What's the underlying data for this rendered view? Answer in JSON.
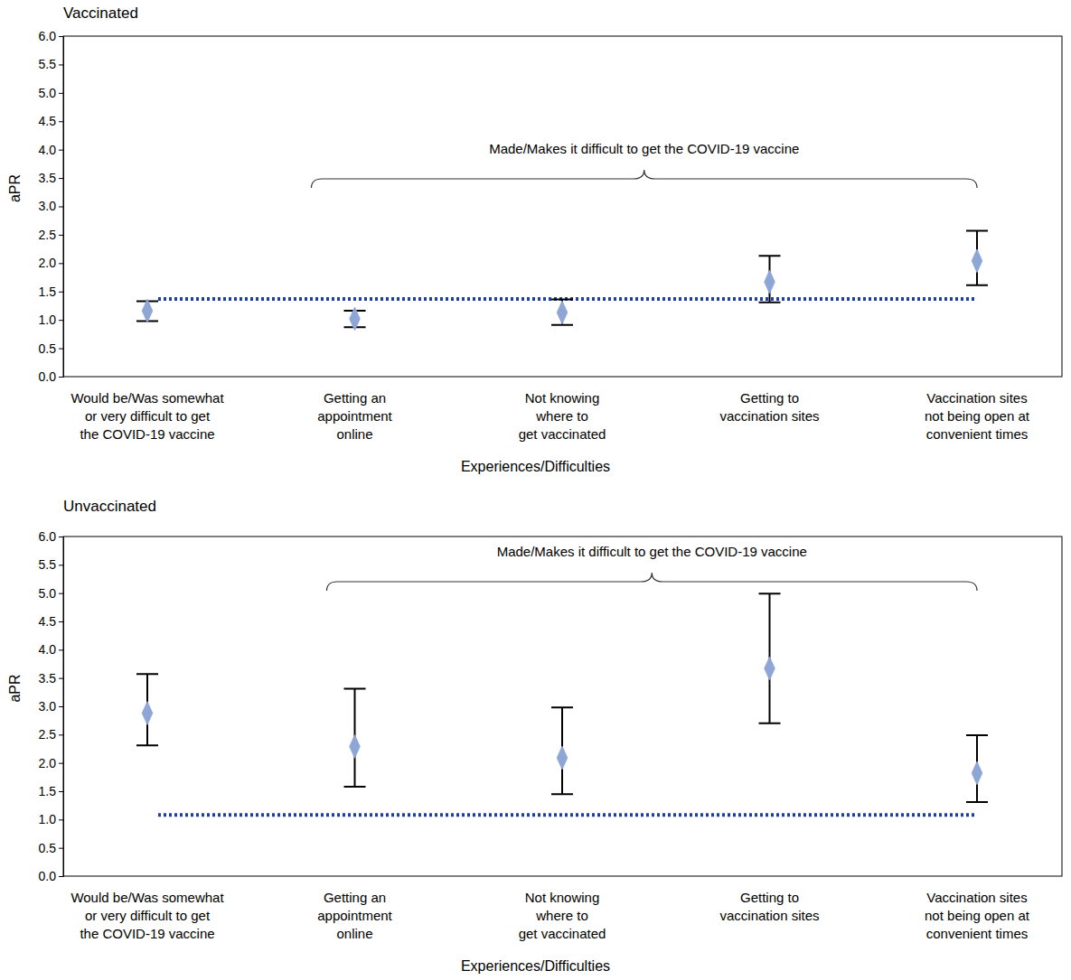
{
  "chart_data": [
    {
      "type": "scatter",
      "title": "Vaccinated",
      "xlabel": "Experiences/Difficulties",
      "ylabel": "aPR",
      "annotation": "Made/Makes it difficult to get the COVID-19 vaccine",
      "categories": [
        "Would be/Was somewhat\nor very difficult to get\nthe COVID-19 vaccine",
        "Getting an\nappointment\nonline",
        "Not knowing\nwhere to\nget vaccinated",
        "Getting to\nvaccination sites",
        "Vaccination sites\nnot being open at\nconvenient times"
      ],
      "series": [
        {
          "name": "Vaccinated",
          "color": "#8ea6d6",
          "marker": "diamond",
          "values": [
            1.16,
            1.02,
            1.13,
            1.67,
            2.04
          ],
          "lower": [
            0.98,
            0.87,
            0.91,
            1.31,
            1.61
          ],
          "upper": [
            1.33,
            1.16,
            1.36,
            2.13,
            2.57
          ]
        }
      ],
      "reference_line": 1.37,
      "ylim": [
        0,
        6
      ],
      "yticks": [
        {
          "value": 0,
          "label": "0.0"
        },
        {
          "value": 0.5,
          "label": "0.5"
        },
        {
          "value": 1,
          "label": "1.0"
        },
        {
          "value": 1.5,
          "label": "1.5"
        },
        {
          "value": 2,
          "label": "2.0"
        },
        {
          "value": 2.5,
          "label": "2.5"
        },
        {
          "value": 3,
          "label": "3.0"
        },
        {
          "value": 3.5,
          "label": "3.5"
        },
        {
          "value": 4,
          "label": "4.0"
        },
        {
          "value": 4.5,
          "label": "4.5"
        },
        {
          "value": 5,
          "label": "5.0"
        },
        {
          "value": 5.5,
          "label": "5.5"
        },
        {
          "value": 6,
          "label": "6.0"
        }
      ],
      "grid": false
    },
    {
      "type": "scatter",
      "title": "Unvaccinated",
      "xlabel": "Experiences/Difficulties",
      "ylabel": "aPR",
      "annotation": "Made/Makes it difficult to get the COVID-19 vaccine",
      "categories": [
        "Would be/Was somewhat\nor very difficult to get\nthe COVID-19 vaccine",
        "Getting an\nappointment\nonline",
        "Not knowing\nwhere to\nget vaccinated",
        "Getting to\nvaccination sites",
        "Vaccination sites\nnot being open at\nconvenient times"
      ],
      "series": [
        {
          "name": "Unvaccinated",
          "color": "#8ea6d6",
          "marker": "diamond",
          "values": [
            2.88,
            2.29,
            2.09,
            3.67,
            1.82
          ],
          "lower": [
            2.31,
            1.58,
            1.45,
            2.7,
            1.31
          ],
          "upper": [
            3.57,
            3.31,
            2.98,
            4.99,
            2.49
          ]
        }
      ],
      "reference_line": 1.08,
      "ylim": [
        0,
        6
      ],
      "yticks": [
        {
          "value": 0,
          "label": "0.0"
        },
        {
          "value": 0.5,
          "label": "0.5"
        },
        {
          "value": 1,
          "label": "1.0"
        },
        {
          "value": 1.5,
          "label": "1.5"
        },
        {
          "value": 2,
          "label": "2.0"
        },
        {
          "value": 2.5,
          "label": "2.5"
        },
        {
          "value": 3,
          "label": "3.0"
        },
        {
          "value": 3.5,
          "label": "3.5"
        },
        {
          "value": 4,
          "label": "4.0"
        },
        {
          "value": 4.5,
          "label": "4.5"
        },
        {
          "value": 5,
          "label": "5.0"
        },
        {
          "value": 5.5,
          "label": "5.5"
        },
        {
          "value": 6,
          "label": "6.0"
        }
      ],
      "grid": false
    }
  ]
}
